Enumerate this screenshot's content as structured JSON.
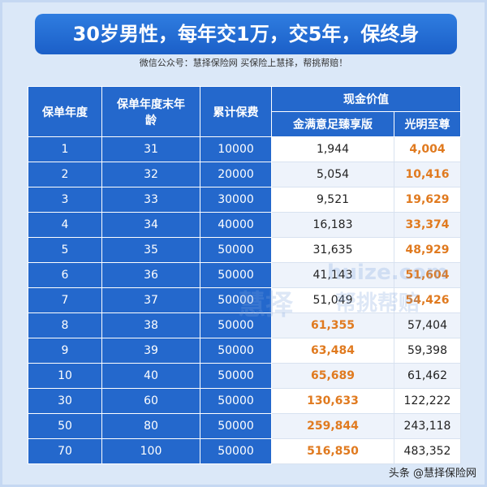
{
  "header": {
    "title": "30岁男性，每年交1万，交5年，保终身",
    "subtitle": "微信公众号：慧择保险网 买保险上慧择，帮挑帮赔！"
  },
  "table": {
    "columns": {
      "year": "保单年度",
      "age": "保单年度末年龄",
      "premium": "累计保费",
      "cash_value": "现金价值",
      "product_a": "金满意足臻享版",
      "product_b": "光明至尊"
    },
    "highlight_color": "#e07a1f",
    "rows": [
      [
        "1",
        "31",
        "10000",
        "1,944",
        "4,004"
      ],
      [
        "2",
        "32",
        "20000",
        "5,054",
        "10,416"
      ],
      [
        "3",
        "33",
        "30000",
        "9,521",
        "19,629"
      ],
      [
        "4",
        "34",
        "40000",
        "16,183",
        "33,374"
      ],
      [
        "5",
        "35",
        "50000",
        "31,635",
        "48,929"
      ],
      [
        "6",
        "36",
        "50000",
        "41,143",
        "51,604"
      ],
      [
        "7",
        "37",
        "50000",
        "51,049",
        "54,426"
      ],
      [
        "8",
        "38",
        "50000",
        "61,355",
        "57,404"
      ],
      [
        "9",
        "39",
        "50000",
        "63,484",
        "59,398"
      ],
      [
        "10",
        "40",
        "50000",
        "65,689",
        "61,462"
      ],
      [
        "30",
        "60",
        "50000",
        "130,633",
        "122,222"
      ],
      [
        "50",
        "80",
        "50000",
        "259,844",
        "243,118"
      ],
      [
        "70",
        "100",
        "50000",
        "516,850",
        "483,352"
      ]
    ]
  },
  "watermark": {
    "site": "huize.com",
    "brand": "慧择",
    "slogan": "帮挑帮赔"
  },
  "footer": {
    "credit": "头条 @慧择保险网"
  }
}
